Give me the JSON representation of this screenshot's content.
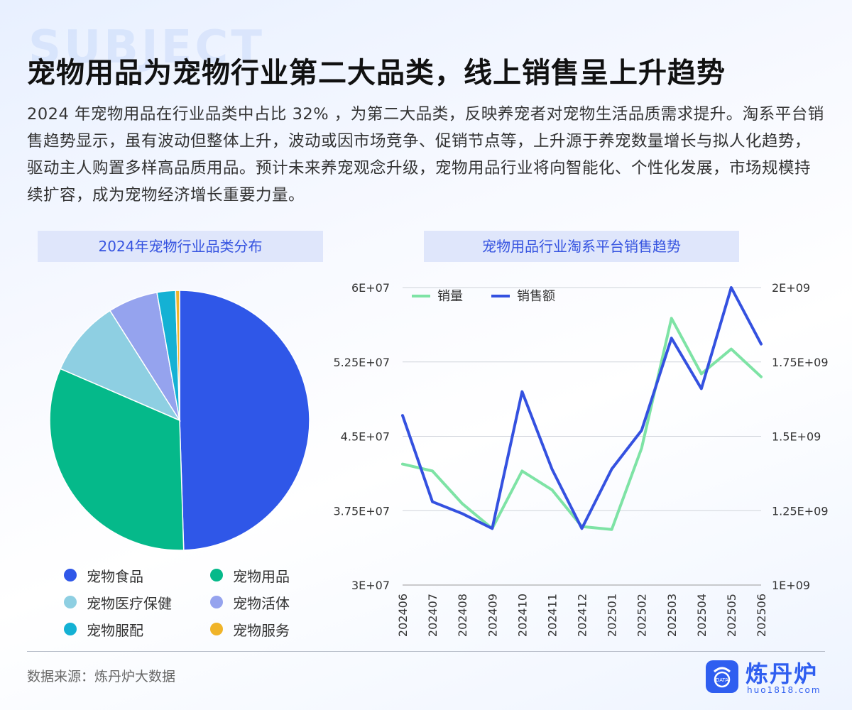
{
  "header": {
    "watermark": "SUBJECT",
    "title": "宠物用品为宠物行业第二大品类，线上销售呈上升趋势",
    "description": "2024 年宠物用品在行业品类中占比 32% ，为第二大品类，反映养宠者对宠物生活品质需求提升。淘系平台销售趋势显示，虽有波动但整体上升，波动或因市场竞争、促销节点等，上升源于养宠数量增长与拟人化趋势，驱动主人购置多样高品质用品。预计未来养宠观念升级，宠物用品行业将向智能化、个性化发展，市场规模持续扩容，成为宠物经济增长重要力量。"
  },
  "footer": {
    "source": "数据来源：炼丹炉大数据",
    "brand": "炼丹炉",
    "url": "huo1818.com",
    "logo_text": "DATA"
  },
  "chart_data": [
    {
      "type": "pie",
      "title": "2024年宠物行业品类分布",
      "categories": [
        "宠物食品",
        "宠物用品",
        "宠物医疗保健",
        "宠物活体",
        "宠物服配",
        "宠物服务"
      ],
      "values": [
        49.5,
        32.0,
        9.5,
        6.2,
        2.3,
        0.5
      ],
      "colors": [
        "#2f57e8",
        "#05b98a",
        "#8ecfe2",
        "#95a3ee",
        "#14b1d4",
        "#f0b429"
      ],
      "legend_position": "bottom"
    },
    {
      "type": "line",
      "title": "宠物用品行业淘系平台销售趋势",
      "x": [
        "202406",
        "202407",
        "202408",
        "202409",
        "202410",
        "202411",
        "202412",
        "202501",
        "202502",
        "202503",
        "202504",
        "202505",
        "202506"
      ],
      "series": [
        {
          "name": "销量",
          "axis": "left",
          "color": "#7ee3a5",
          "values": [
            42200000,
            41500000,
            38200000,
            35700000,
            41500000,
            39600000,
            35900000,
            35600000,
            43800000,
            56900000,
            51300000,
            53800000,
            51000000
          ]
        },
        {
          "name": "销售额",
          "axis": "right",
          "color": "#3451e0",
          "values": [
            1570000000,
            1280000000,
            1240000000,
            1190000000,
            1650000000,
            1390000000,
            1190000000,
            1390000000,
            1520000000,
            1830000000,
            1660000000,
            2000000000,
            1810000000
          ]
        }
      ],
      "y_left": {
        "range": [
          30000000,
          60000000
        ],
        "ticks": [
          "3E+07",
          "3.75E+07",
          "4.5E+07",
          "5.25E+07",
          "6E+07"
        ]
      },
      "y_right": {
        "range": [
          1000000000,
          2000000000
        ],
        "ticks": [
          "1E+09",
          "1.25E+09",
          "1.5E+09",
          "1.75E+09",
          "2E+09"
        ]
      },
      "grid": true,
      "legend_position": "top-left"
    }
  ]
}
